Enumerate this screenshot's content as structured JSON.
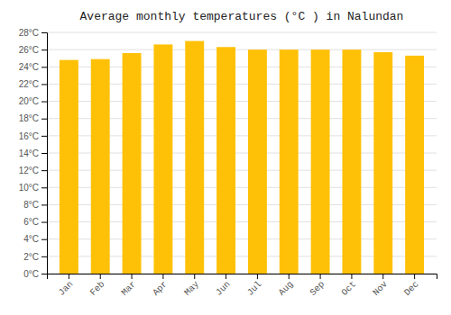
{
  "chart_data": {
    "type": "bar",
    "title": "Average monthly temperatures (°C ) in Nalundan",
    "categories": [
      "Jan",
      "Feb",
      "Mar",
      "Apr",
      "May",
      "Jun",
      "Jul",
      "Aug",
      "Sep",
      "Oct",
      "Nov",
      "Dec"
    ],
    "values": [
      24.8,
      24.9,
      25.6,
      26.6,
      27.0,
      26.3,
      26.0,
      26.0,
      26.0,
      26.0,
      25.7,
      25.3
    ],
    "color": "#FFC107",
    "ylim": [
      0,
      28
    ],
    "yticks": [
      {
        "value": 0,
        "label": "0°C"
      },
      {
        "value": 2,
        "label": "2°C"
      },
      {
        "value": 4,
        "label": "4°C"
      },
      {
        "value": 6,
        "label": "6°C"
      },
      {
        "value": 8,
        "label": "8°C"
      },
      {
        "value": 10,
        "label": "10°C"
      },
      {
        "value": 12,
        "label": "12°C"
      },
      {
        "value": 14,
        "label": "14°C"
      },
      {
        "value": 16,
        "label": "16°C"
      },
      {
        "value": 18,
        "label": "18°C"
      },
      {
        "value": 20,
        "label": "20°C"
      },
      {
        "value": 22,
        "label": "22°C"
      },
      {
        "value": 24,
        "label": "24°C"
      },
      {
        "value": 26,
        "label": "26°C"
      },
      {
        "value": 28,
        "label": "28°C"
      }
    ],
    "grid": true
  }
}
